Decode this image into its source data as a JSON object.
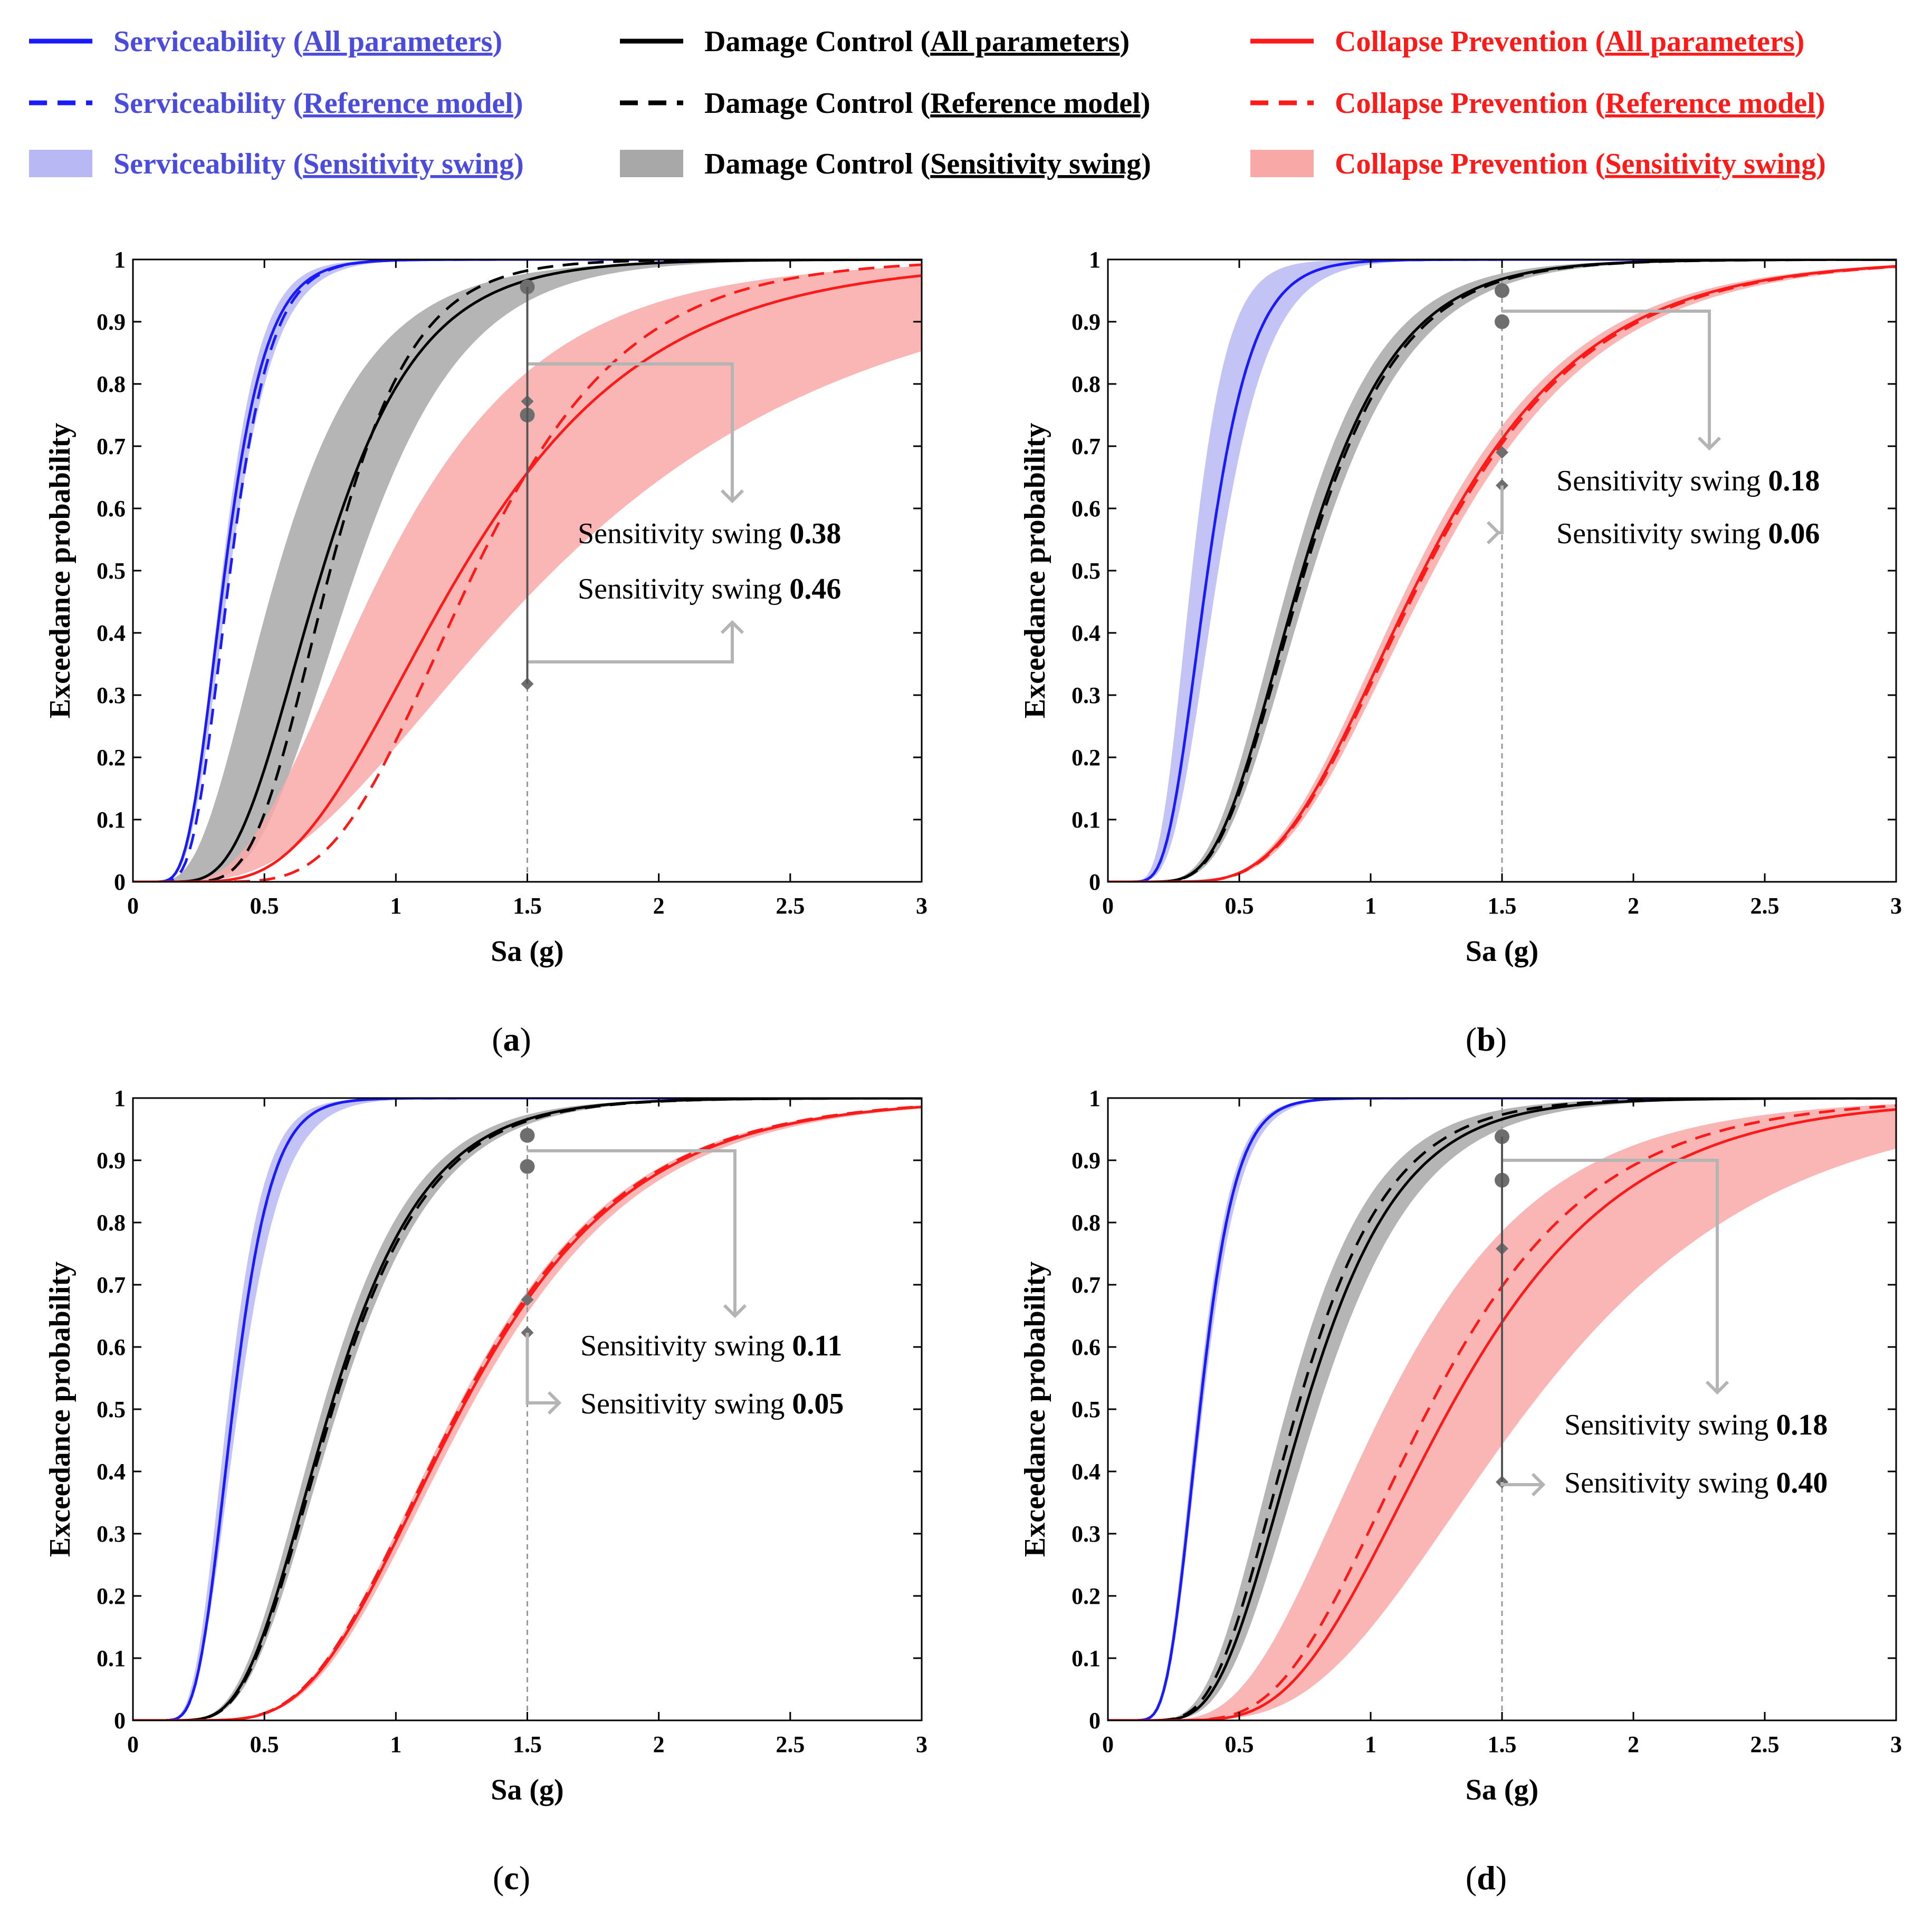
{
  "colors": {
    "serviceability": "#1a1aff",
    "serviceability_text": "#4b4bdc",
    "serviceability_fill": "#b8b8f4",
    "damage_control": "#000000",
    "damage_fill": "#a8a8a8",
    "collapse_prevention": "#ff1a1a",
    "collapse_fill": "#f9a8a8",
    "annotation": "#b4b4b4",
    "marker": "#6e6e6e"
  },
  "legend": [
    {
      "name": "Serviceability",
      "variant": "All parameters",
      "state": "serviceability",
      "style": "solid"
    },
    {
      "name": "Damage Control",
      "variant": "All parameters",
      "state": "damage_control",
      "style": "solid"
    },
    {
      "name": "Collapse Prevention",
      "variant": "All parameters",
      "state": "collapse_prevention",
      "style": "solid"
    },
    {
      "name": "Serviceability",
      "variant": "Reference model",
      "state": "serviceability",
      "style": "dashed"
    },
    {
      "name": "Damage Control",
      "variant": "Reference model",
      "state": "damage_control",
      "style": "dashed"
    },
    {
      "name": "Collapse Prevention",
      "variant": "Reference model",
      "state": "collapse_prevention",
      "style": "dashed"
    },
    {
      "name": "Serviceability",
      "variant": "Sensitivity swing",
      "state": "serviceability",
      "style": "band"
    },
    {
      "name": "Damage Control",
      "variant": "Sensitivity swing",
      "state": "damage_control",
      "style": "band"
    },
    {
      "name": "Collapse Prevention",
      "variant": "Sensitivity swing",
      "state": "collapse_prevention",
      "style": "band"
    }
  ],
  "chart_data": [
    {
      "type": "line",
      "panel_label": "(a)",
      "xlabel": "Sa (g)",
      "ylabel": "Exceedance probability",
      "xlim": [
        0,
        3
      ],
      "ylim": [
        0,
        1
      ],
      "xticks": [
        "0",
        "0.5",
        "1",
        "1.5",
        "2",
        "2.5",
        "3"
      ],
      "yticks": [
        "0",
        "0.1",
        "0.2",
        "0.3",
        "0.4",
        "0.5",
        "0.6",
        "0.7",
        "0.8",
        "0.9",
        "1"
      ],
      "marker_x": 1.5,
      "series": [
        {
          "name": "Serviceability (All parameters)",
          "state": "serviceability",
          "median": 0.35,
          "beta": 0.35,
          "band_upper": {
            "median": 0.34,
            "beta": 0.33
          },
          "band_lower": {
            "median": 0.37,
            "beta": 0.36
          },
          "reference": {
            "median": 0.37,
            "beta": 0.33
          }
        },
        {
          "name": "Damage Control (All parameters)",
          "state": "damage_control",
          "median": 0.72,
          "beta": 0.4,
          "band_upper": {
            "median": 0.55,
            "beta": 0.5
          },
          "band_lower": {
            "median": 0.85,
            "beta": 0.38
          },
          "reference": {
            "median": 0.75,
            "beta": 0.33
          }
        },
        {
          "name": "Collapse Prevention (All parameters)",
          "state": "collapse_prevention",
          "median": 1.25,
          "beta": 0.45,
          "band_upper": {
            "median": 0.95,
            "beta": 0.5
          },
          "band_lower": {
            "median": 1.6,
            "beta": 0.6
          },
          "reference": {
            "median": 1.3,
            "beta": 0.35
          }
        }
      ],
      "markers": [
        {
          "state": "damage_control",
          "shape": "circle",
          "value": 0.956
        },
        {
          "state": "damage_control",
          "shape": "diamond",
          "value": 0.772
        },
        {
          "state": "collapse_prevention",
          "shape": "circle",
          "value": 0.75
        },
        {
          "state": "collapse_prevention",
          "shape": "diamond",
          "value": 0.318
        }
      ],
      "annotations": [
        {
          "label": "Sensitivity swing",
          "value": "0.38"
        },
        {
          "label": "Sensitivity swing",
          "value": "0.46"
        }
      ]
    },
    {
      "type": "line",
      "panel_label": "(b)",
      "xlabel": "Sa (g)",
      "ylabel": "Exceedance probability",
      "xlim": [
        0,
        3
      ],
      "ylim": [
        0,
        1
      ],
      "xticks": [
        "0",
        "0.5",
        "1",
        "1.5",
        "2",
        "2.5",
        "3"
      ],
      "yticks": [
        "0",
        "0.1",
        "0.2",
        "0.3",
        "0.4",
        "0.5",
        "0.6",
        "0.7",
        "0.8",
        "0.9",
        "1"
      ],
      "marker_x": 1.5,
      "series": [
        {
          "name": "Serviceability (All parameters)",
          "state": "serviceability",
          "median": 0.38,
          "beta": 0.35,
          "band_upper": {
            "median": 0.32,
            "beta": 0.33
          },
          "band_lower": {
            "median": 0.42,
            "beta": 0.36
          },
          "reference": {
            "median": 0.38,
            "beta": 0.35
          }
        },
        {
          "name": "Damage Control (All parameters)",
          "state": "damage_control",
          "median": 0.74,
          "beta": 0.38,
          "band_upper": {
            "median": 0.7,
            "beta": 0.38
          },
          "band_lower": {
            "median": 0.78,
            "beta": 0.38
          },
          "reference": {
            "median": 0.75,
            "beta": 0.38
          }
        },
        {
          "name": "Collapse Prevention (All parameters)",
          "state": "collapse_prevention",
          "median": 1.2,
          "beta": 0.4,
          "band_upper": {
            "median": 1.17,
            "beta": 0.4
          },
          "band_lower": {
            "median": 1.24,
            "beta": 0.4
          },
          "reference": {
            "median": 1.21,
            "beta": 0.4
          }
        }
      ],
      "markers": [
        {
          "state": "damage_control",
          "shape": "circle",
          "value": 0.95
        },
        {
          "state": "damage_control",
          "shape": "circle",
          "value": 0.9
        },
        {
          "state": "collapse_prevention",
          "shape": "diamond",
          "value": 0.69
        },
        {
          "state": "collapse_prevention",
          "shape": "diamond",
          "value": 0.637
        }
      ],
      "annotations": [
        {
          "label": "Sensitivity swing",
          "value": "0.18"
        },
        {
          "label": "Sensitivity swing",
          "value": "0.06"
        }
      ]
    },
    {
      "type": "line",
      "panel_label": "(c)",
      "xlabel": "Sa (g)",
      "ylabel": "Exceedance probability",
      "xlim": [
        0,
        3
      ],
      "ylim": [
        0,
        1
      ],
      "xticks": [
        "0",
        "0.5",
        "1",
        "1.5",
        "2",
        "2.5",
        "3"
      ],
      "yticks": [
        "0",
        "0.1",
        "0.2",
        "0.3",
        "0.4",
        "0.5",
        "0.6",
        "0.7",
        "0.8",
        "0.9",
        "1"
      ],
      "marker_x": 1.5,
      "series": [
        {
          "name": "Serviceability (All parameters)",
          "state": "serviceability",
          "median": 0.38,
          "beta": 0.3,
          "band_upper": {
            "median": 0.36,
            "beta": 0.3
          },
          "band_lower": {
            "median": 0.4,
            "beta": 0.33
          },
          "reference": {
            "median": 0.38,
            "beta": 0.3
          }
        },
        {
          "name": "Damage Control (All parameters)",
          "state": "damage_control",
          "median": 0.75,
          "beta": 0.38,
          "band_upper": {
            "median": 0.72,
            "beta": 0.38
          },
          "band_lower": {
            "median": 0.78,
            "beta": 0.38
          },
          "reference": {
            "median": 0.76,
            "beta": 0.38
          }
        },
        {
          "name": "Collapse Prevention (All parameters)",
          "state": "collapse_prevention",
          "median": 1.25,
          "beta": 0.4,
          "band_upper": {
            "median": 1.23,
            "beta": 0.4
          },
          "band_lower": {
            "median": 1.28,
            "beta": 0.4
          },
          "reference": {
            "median": 1.24,
            "beta": 0.4
          }
        }
      ],
      "markers": [
        {
          "state": "damage_control",
          "shape": "circle",
          "value": 0.94
        },
        {
          "state": "damage_control",
          "shape": "circle",
          "value": 0.89
        },
        {
          "state": "collapse_prevention",
          "shape": "diamond",
          "value": 0.676
        },
        {
          "state": "collapse_prevention",
          "shape": "diamond",
          "value": 0.623
        }
      ],
      "annotations": [
        {
          "label": "Sensitivity swing",
          "value": "0.11"
        },
        {
          "label": "Sensitivity swing",
          "value": "0.05"
        }
      ]
    },
    {
      "type": "line",
      "panel_label": "(d)",
      "xlabel": "Sa (g)",
      "ylabel": "Exceedance probability",
      "xlim": [
        0,
        3
      ],
      "ylim": [
        0,
        1
      ],
      "xticks": [
        "0",
        "0.5",
        "1",
        "1.5",
        "2",
        "2.5",
        "3"
      ],
      "yticks": [
        "0",
        "0.1",
        "0.2",
        "0.3",
        "0.4",
        "0.5",
        "0.6",
        "0.7",
        "0.8",
        "0.9",
        "1"
      ],
      "marker_x": 1.5,
      "series": [
        {
          "name": "Serviceability (All parameters)",
          "state": "serviceability",
          "median": 0.35,
          "beta": 0.3,
          "band_upper": {
            "median": 0.34,
            "beta": 0.3
          },
          "band_lower": {
            "median": 0.36,
            "beta": 0.31
          },
          "reference": {
            "median": 0.35,
            "beta": 0.3
          }
        },
        {
          "name": "Damage Control (All parameters)",
          "state": "damage_control",
          "median": 0.75,
          "beta": 0.38,
          "band_upper": {
            "median": 0.68,
            "beta": 0.38
          },
          "band_lower": {
            "median": 0.8,
            "beta": 0.38
          },
          "reference": {
            "median": 0.72,
            "beta": 0.38
          }
        },
        {
          "name": "Collapse Prevention (All parameters)",
          "state": "collapse_prevention",
          "median": 1.3,
          "beta": 0.4,
          "band_upper": {
            "median": 1.05,
            "beta": 0.45
          },
          "band_lower": {
            "median": 1.6,
            "beta": 0.45
          },
          "reference": {
            "median": 1.22,
            "beta": 0.4
          }
        }
      ],
      "markers": [
        {
          "state": "damage_control",
          "shape": "circle",
          "value": 0.938
        },
        {
          "state": "damage_control",
          "shape": "circle",
          "value": 0.868
        },
        {
          "state": "collapse_prevention",
          "shape": "diamond",
          "value": 0.758
        },
        {
          "state": "collapse_prevention",
          "shape": "diamond",
          "value": 0.383
        }
      ],
      "annotations": [
        {
          "label": "Sensitivity swing",
          "value": "0.18"
        },
        {
          "label": "Sensitivity swing",
          "value": "0.40"
        }
      ]
    }
  ]
}
